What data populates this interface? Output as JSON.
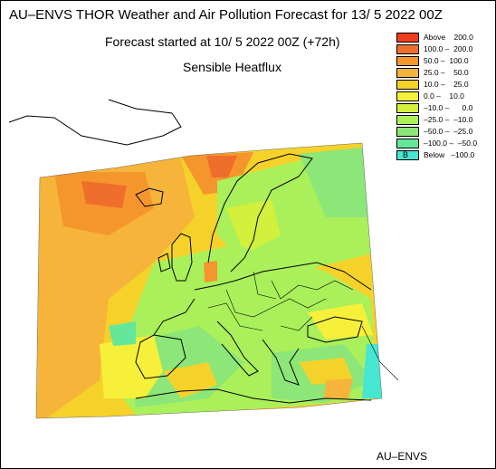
{
  "header": {
    "title": "AU–ENVS THOR Weather and Air Pollution Forecast for 13/ 5 2022  00Z",
    "subtitle": "Forecast started at 10/ 5 2022  00Z (+72h)",
    "variable": "Sensible Heatflux"
  },
  "footer": {
    "credit": "AU–ENVS"
  },
  "legend": {
    "items": [
      {
        "label": "Above    200.0",
        "color": "#f03c1e"
      },
      {
        "label": "100.0 –  200.0",
        "color": "#f06e2c"
      },
      {
        "label": "50.0 –  100.0",
        "color": "#f5962d"
      },
      {
        "label": "25.0 –    50.0",
        "color": "#f7b43a"
      },
      {
        "label": "10.0 –    25.0",
        "color": "#f5d22a"
      },
      {
        "label": "0.0 –    10.0",
        "color": "#f7f03a"
      },
      {
        "label": "–10.0 –      0.0",
        "color": "#d2f03c"
      },
      {
        "label": "–25.0 –  –10.0",
        "color": "#aaf05a"
      },
      {
        "label": "–50.0 –  –25.0",
        "color": "#8ce678"
      },
      {
        "label": "–100.0 –  –50.0",
        "color": "#64e69b"
      },
      {
        "label": "Below   –100.0",
        "color": "#46e6d2",
        "marker": "B"
      }
    ]
  }
}
